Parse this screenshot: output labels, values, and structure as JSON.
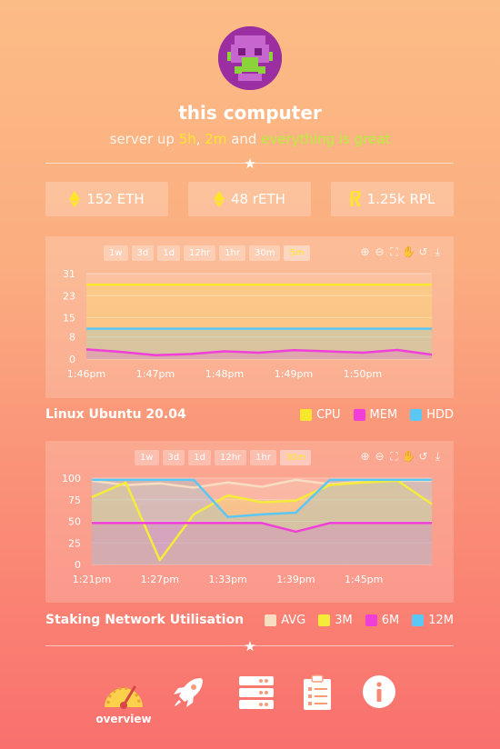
{
  "header": {
    "title": "this computer",
    "subtitle_prefix": "server up ",
    "uptime_h": "5h",
    "sep": ", ",
    "uptime_m": "2m",
    "and_text": " and ",
    "status": "everything is great"
  },
  "stats": [
    {
      "label": "152 ETH",
      "icon": "eth-icon"
    },
    {
      "label": "48 rETH",
      "icon": "reth-icon"
    },
    {
      "label": "1.25k RPL",
      "icon": "rpl-icon"
    }
  ],
  "colors": {
    "cpu": "#f9e72d",
    "mem": "#f03fd8",
    "hdd": "#5bc7f5",
    "avg": "#f7ddc2",
    "m3": "#f5ec3a",
    "m6": "#f03fd8",
    "m12": "#5bc7f5",
    "accent_yellow": "#ffe62b",
    "accent_green": "#b6f03a"
  },
  "system_chart": {
    "ranges": [
      "1w",
      "3d",
      "1d",
      "12hr",
      "1hr",
      "30m",
      "5m"
    ],
    "active_range": "5m",
    "title": "Linux Ubuntu 20.04",
    "legend": [
      "CPU",
      "MEM",
      "HDD"
    ]
  },
  "staking_chart": {
    "ranges": [
      "1w",
      "3d",
      "1d",
      "12hr",
      "1hr",
      "30m"
    ],
    "active_range": "30m",
    "title": "Staking Network Utilisation",
    "legend": [
      "AVG",
      "3M",
      "6M",
      "12M"
    ]
  },
  "chart_data": [
    {
      "type": "area",
      "x": [
        "1:46pm",
        "1:46:30pm",
        "1:47pm",
        "1:47:30pm",
        "1:48pm",
        "1:48:30pm",
        "1:49pm",
        "1:49:30pm",
        "1:50pm",
        "1:50:30pm",
        "1:51pm"
      ],
      "xticks": [
        "1:46pm",
        "1:47pm",
        "1:48pm",
        "1:49pm",
        "1:50pm"
      ],
      "yticks": [
        0,
        8,
        15,
        23,
        31
      ],
      "ylim": [
        0,
        31
      ],
      "series": [
        {
          "name": "CPU",
          "values": [
            27,
            27,
            27,
            27,
            27,
            27,
            27,
            27,
            27,
            27,
            27
          ]
        },
        {
          "name": "HDD",
          "values": [
            11,
            11,
            11,
            11,
            11,
            11,
            11,
            11,
            11,
            11,
            11
          ]
        },
        {
          "name": "MEM",
          "values": [
            3.5,
            2.6,
            1.4,
            1.8,
            2.8,
            2.3,
            3.2,
            2.8,
            2.3,
            3.3,
            1.6
          ]
        }
      ]
    },
    {
      "type": "area",
      "x": [
        "1:21pm",
        "1:24pm",
        "1:27pm",
        "1:30pm",
        "1:33pm",
        "1:36pm",
        "1:39pm",
        "1:42pm",
        "1:45pm",
        "1:48pm",
        "1:50pm"
      ],
      "xticks": [
        "1:21pm",
        "1:27pm",
        "1:33pm",
        "1:39pm",
        "1:45pm"
      ],
      "yticks": [
        0,
        25,
        50,
        75,
        100
      ],
      "ylim": [
        0,
        100
      ],
      "series": [
        {
          "name": "AVG",
          "values": [
            97,
            92,
            94,
            89,
            95,
            90,
            98,
            93,
            96,
            97,
            97
          ]
        },
        {
          "name": "3M",
          "values": [
            78,
            95,
            5,
            58,
            80,
            72,
            74,
            92,
            95,
            97,
            70
          ]
        },
        {
          "name": "6M",
          "values": [
            48,
            48,
            48,
            48,
            48,
            48,
            38,
            48,
            48,
            48,
            48
          ]
        },
        {
          "name": "12M",
          "values": [
            98,
            98,
            98,
            98,
            55,
            58,
            60,
            98,
            98,
            98,
            98
          ]
        }
      ]
    }
  ],
  "nav": {
    "items": [
      "overview",
      "rocket",
      "servers",
      "tasks",
      "info"
    ],
    "active_label": "overview"
  }
}
